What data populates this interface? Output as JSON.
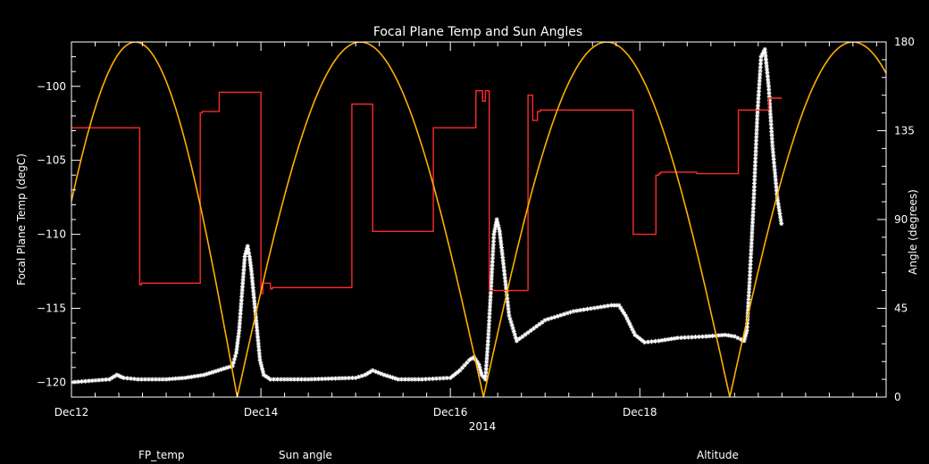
{
  "chart_data": {
    "type": "line",
    "title": "Focal Plane Temp and Sun Angles",
    "xlabel": "2014",
    "ylabel_left": "Focal Plane Temp (degC)",
    "ylabel_right": "Angle (degrees)",
    "x_unit": "day of December 2014",
    "xlim": [
      12,
      20.6
    ],
    "ylim_left": [
      -121,
      -97
    ],
    "ylim_right": [
      0,
      180
    ],
    "x_ticks": [
      {
        "value": 12,
        "label": "Dec12"
      },
      {
        "value": 14,
        "label": "Dec14"
      },
      {
        "value": 16,
        "label": "Dec16"
      },
      {
        "value": 18,
        "label": "Dec18"
      }
    ],
    "y_ticks_left": [
      {
        "value": -100,
        "label": "−100"
      },
      {
        "value": -105,
        "label": "−105"
      },
      {
        "value": -110,
        "label": "−110"
      },
      {
        "value": -115,
        "label": "−115"
      },
      {
        "value": -120,
        "label": "−120"
      }
    ],
    "y_ticks_right": [
      {
        "value": 180,
        "label": "180"
      },
      {
        "value": 135,
        "label": "135"
      },
      {
        "value": 90,
        "label": "90"
      },
      {
        "value": 45,
        "label": "45"
      },
      {
        "value": 0,
        "label": "0"
      }
    ],
    "legend": [
      {
        "name": "FP_temp",
        "color": "#ffffff"
      },
      {
        "name": "Sun angle",
        "color": "#ff2a2a"
      },
      {
        "name": "Altitude",
        "color": "#ffb000"
      }
    ],
    "series": [
      {
        "name": "FP_temp",
        "axis": "left",
        "color": "#ffffff",
        "marker": "asterisk",
        "x": [
          12.0,
          12.4,
          12.48,
          12.55,
          12.7,
          13.0,
          13.2,
          13.4,
          13.55,
          13.7,
          13.74,
          13.77,
          13.8,
          13.83,
          13.86,
          13.88,
          13.9,
          13.93,
          13.96,
          13.99,
          14.03,
          14.1,
          14.5,
          15.0,
          15.1,
          15.18,
          15.3,
          15.45,
          15.7,
          16.0,
          16.1,
          16.2,
          16.25,
          16.3,
          16.33,
          16.37,
          16.4,
          16.43,
          16.46,
          16.49,
          16.52,
          16.56,
          16.62,
          16.7,
          16.85,
          17.0,
          17.3,
          17.7,
          17.78,
          17.85,
          17.95,
          18.05,
          18.2,
          18.4,
          18.7,
          18.9,
          19.0,
          19.1,
          19.13,
          19.16,
          19.2,
          19.24,
          19.28,
          19.32,
          19.36,
          19.4,
          19.45,
          19.5
        ],
        "y": [
          -120.0,
          -119.8,
          -119.5,
          -119.7,
          -119.8,
          -119.8,
          -119.7,
          -119.5,
          -119.2,
          -118.9,
          -118.0,
          -116.5,
          -114.0,
          -111.5,
          -110.8,
          -111.5,
          -112.5,
          -114.5,
          -116.5,
          -118.5,
          -119.5,
          -119.8,
          -119.8,
          -119.7,
          -119.5,
          -119.2,
          -119.5,
          -119.8,
          -119.8,
          -119.7,
          -119.2,
          -118.5,
          -118.3,
          -118.8,
          -119.5,
          -119.8,
          -117.0,
          -113.5,
          -110.0,
          -109.0,
          -109.8,
          -112.0,
          -115.5,
          -117.2,
          -116.5,
          -115.8,
          -115.2,
          -114.8,
          -114.8,
          -115.5,
          -116.8,
          -117.3,
          -117.2,
          -117.0,
          -116.9,
          -116.8,
          -116.9,
          -117.2,
          -116.5,
          -113.0,
          -108.0,
          -102.0,
          -98.0,
          -97.5,
          -100.0,
          -104.0,
          -107.5,
          -109.5
        ]
      },
      {
        "name": "Sun angle",
        "axis": "left",
        "color": "#ff2a2a",
        "marker": "line",
        "x": [
          12.0,
          12.72,
          12.72,
          12.74,
          12.74,
          13.36,
          13.36,
          13.38,
          13.38,
          13.56,
          13.56,
          14.0,
          14.0,
          14.02,
          14.02,
          14.1,
          14.1,
          14.12,
          14.12,
          14.96,
          14.96,
          15.18,
          15.18,
          15.82,
          15.82,
          16.27,
          16.27,
          16.34,
          16.34,
          16.37,
          16.37,
          16.41,
          16.41,
          16.82,
          16.82,
          16.87,
          16.87,
          16.92,
          16.92,
          16.95,
          16.95,
          17.93,
          17.93,
          18.17,
          18.17,
          18.2,
          18.2,
          18.22,
          18.22,
          18.6,
          18.6,
          19.04,
          19.04,
          19.36,
          19.36,
          19.5
        ],
        "y": [
          -102.8,
          -102.8,
          -113.4,
          -113.4,
          -113.3,
          -113.3,
          -101.8,
          -101.8,
          -101.7,
          -101.7,
          -100.4,
          -100.4,
          -114.0,
          -114.0,
          -113.3,
          -113.3,
          -113.7,
          -113.7,
          -113.6,
          -113.6,
          -101.2,
          -101.2,
          -109.8,
          -109.8,
          -102.8,
          -102.8,
          -100.3,
          -100.3,
          -101.0,
          -101.0,
          -100.3,
          -100.3,
          -113.8,
          -113.8,
          -100.6,
          -100.6,
          -102.3,
          -102.3,
          -101.7,
          -101.7,
          -101.6,
          -101.6,
          -110.0,
          -110.0,
          -106.0,
          -106.0,
          -105.9,
          -105.9,
          -105.8,
          -105.8,
          -105.9,
          -105.9,
          -101.6,
          -101.6,
          -100.8,
          -100.8
        ]
      },
      {
        "name": "Altitude",
        "axis": "right",
        "color": "#ffb000",
        "marker": "line",
        "segments": [
          {
            "x0": 11.6,
            "x1": 13.75
          },
          {
            "x0": 13.75,
            "x1": 16.35
          },
          {
            "x0": 16.35,
            "x1": 18.95
          },
          {
            "x0": 18.95,
            "x1": 21.55
          }
        ],
        "peak": 180
      }
    ]
  }
}
